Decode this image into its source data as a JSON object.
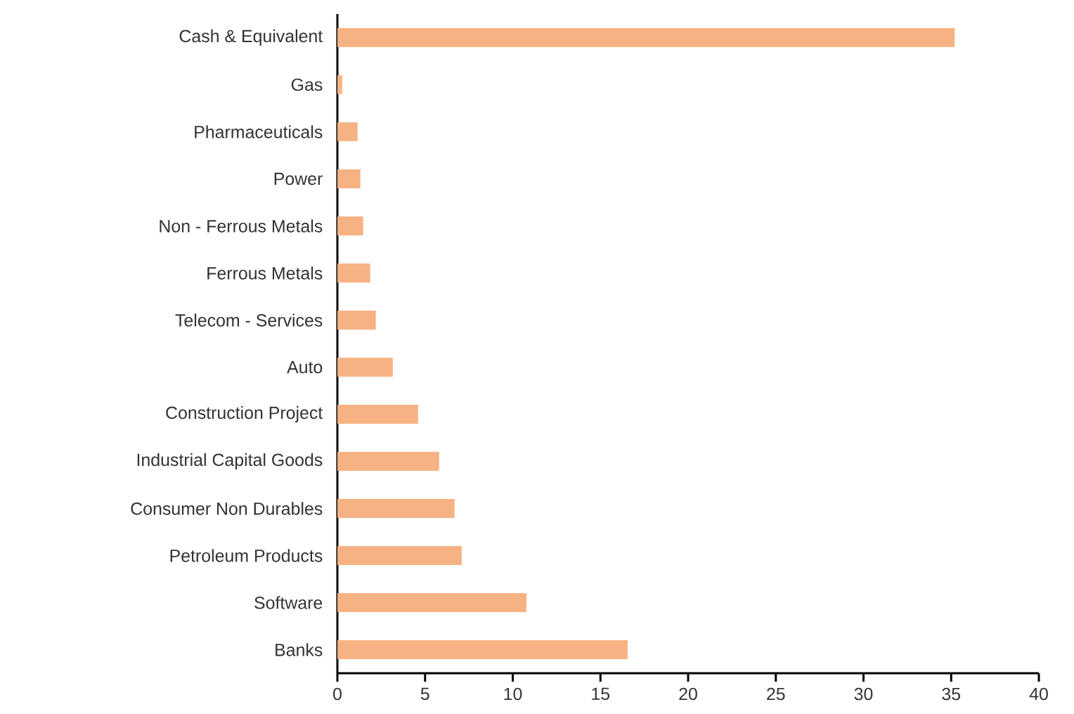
{
  "chart_data": {
    "type": "bar",
    "orientation": "horizontal",
    "categories": [
      "Cash & Equivalent",
      "Gas",
      "Pharmaceuticals",
      "Power",
      "Non - Ferrous Metals",
      "Ferrous Metals",
      "Telecom - Services",
      "Auto",
      "Construction Project",
      "Industrial Capital Goods",
      "Consumer Non Durables",
      "Petroleum Products",
      "Software",
      "Banks"
    ],
    "values": [
      35.2,
      0.27,
      1.15,
      1.31,
      1.47,
      1.87,
      2.19,
      3.16,
      4.6,
      5.8,
      6.68,
      7.09,
      10.78,
      16.55
    ],
    "color": "#f7b283",
    "xlim": [
      0,
      40
    ],
    "xticks": [
      0,
      5,
      10,
      15,
      20,
      25,
      30,
      35,
      40
    ]
  }
}
